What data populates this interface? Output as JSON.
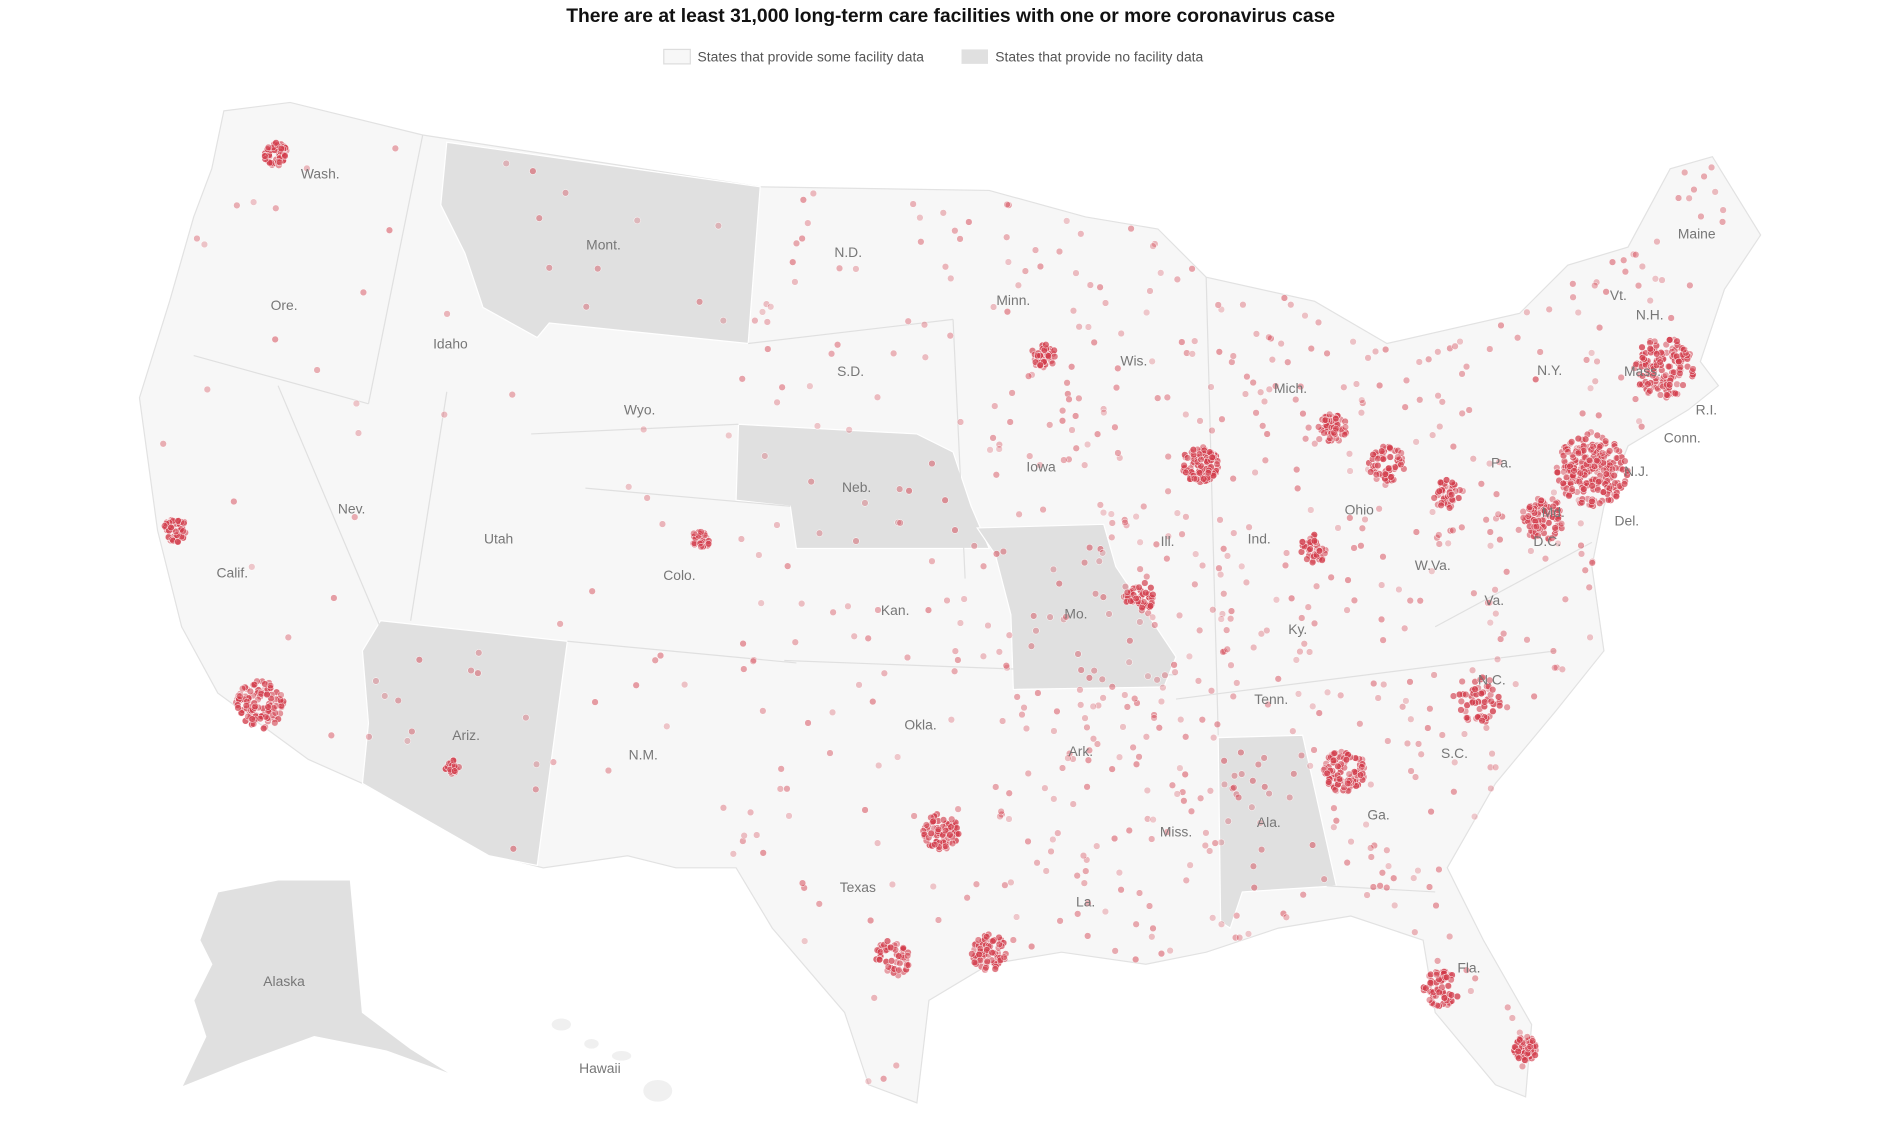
{
  "title": "There are at least 31,000 long-term care facilities with one or more coronavirus case",
  "legend": [
    {
      "label": "States that provide some facility data"
    },
    {
      "label": "States that provide no facility data"
    }
  ],
  "states": [
    {
      "label": "Wash."
    },
    {
      "label": "Ore."
    },
    {
      "label": "Calif."
    },
    {
      "label": "Idaho"
    },
    {
      "label": "Nev."
    },
    {
      "label": "Mont."
    },
    {
      "label": "Wyo."
    },
    {
      "label": "Utah"
    },
    {
      "label": "Ariz."
    },
    {
      "label": "Colo."
    },
    {
      "label": "N.M."
    },
    {
      "label": "N.D."
    },
    {
      "label": "S.D."
    },
    {
      "label": "Neb."
    },
    {
      "label": "Kan."
    },
    {
      "label": "Okla."
    },
    {
      "label": "Texas"
    },
    {
      "label": "Minn."
    },
    {
      "label": "Iowa"
    },
    {
      "label": "Mo."
    },
    {
      "label": "Ark."
    },
    {
      "label": "La."
    },
    {
      "label": "Wis."
    },
    {
      "label": "Ill."
    },
    {
      "label": "Mich."
    },
    {
      "label": "Ind."
    },
    {
      "label": "Ohio"
    },
    {
      "label": "Ky."
    },
    {
      "label": "Tenn."
    },
    {
      "label": "Miss."
    },
    {
      "label": "Ala."
    },
    {
      "label": "Ga."
    },
    {
      "label": "Fla."
    },
    {
      "label": "S.C."
    },
    {
      "label": "N.C."
    },
    {
      "label": "Va."
    },
    {
      "label": "W.Va."
    },
    {
      "label": "Pa."
    },
    {
      "label": "N.Y."
    },
    {
      "label": "Vt."
    },
    {
      "label": "N.H."
    },
    {
      "label": "Maine"
    },
    {
      "label": "Mass."
    },
    {
      "label": "R.I."
    },
    {
      "label": "Conn."
    },
    {
      "label": "N.J."
    },
    {
      "label": "Del."
    },
    {
      "label": "Md."
    },
    {
      "label": "D.C."
    },
    {
      "label": "Alaska"
    },
    {
      "label": "Hawaii"
    }
  ]
}
